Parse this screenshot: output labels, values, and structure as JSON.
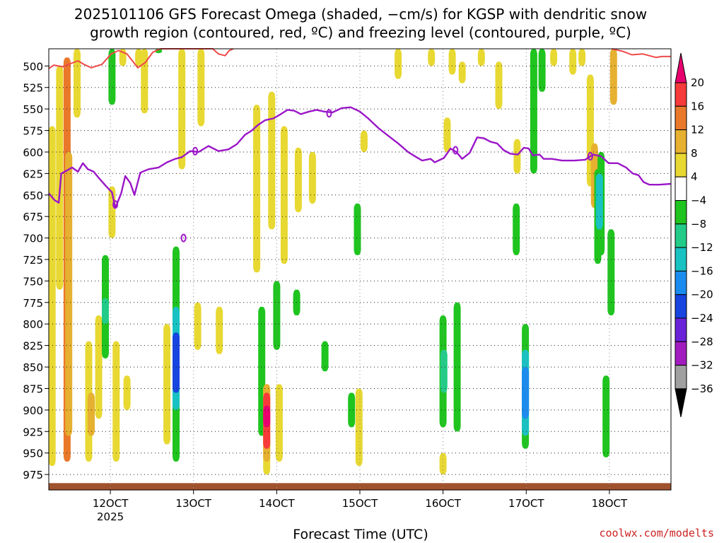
{
  "chart_data": {
    "type": "heatmap",
    "title_line1": "2025101106 GFS Forecast Omega (shaded, −cm/s) for KGSP with dendritic snow",
    "title_line2": "growth region (contoured, red, ºC) and freezing level (contoured, purple, ºC)",
    "xlabel": "Forecast Time (UTC)",
    "credit": "coolwx.com/modelts",
    "x_range_hours": [
      112.6,
      187.4
    ],
    "x_ticks": [
      {
        "hour": 120,
        "label": "12OCT",
        "sublabel": "2025"
      },
      {
        "hour": 130,
        "label": "13OCT",
        "sublabel": ""
      },
      {
        "hour": 140,
        "label": "14OCT",
        "sublabel": ""
      },
      {
        "hour": 150,
        "label": "15OCT",
        "sublabel": ""
      },
      {
        "hour": 160,
        "label": "16OCT",
        "sublabel": ""
      },
      {
        "hour": 170,
        "label": "17OCT",
        "sublabel": ""
      },
      {
        "hour": 180,
        "label": "18OCT",
        "sublabel": ""
      }
    ],
    "y_range_hpa": [
      480,
      993
    ],
    "y_ticks": [
      500,
      525,
      550,
      575,
      600,
      625,
      650,
      675,
      700,
      725,
      750,
      775,
      800,
      825,
      850,
      875,
      900,
      925,
      950,
      975
    ],
    "colorbar": {
      "levels": [
        {
          "label": "20",
          "color": "#e8006e"
        },
        {
          "label": "16",
          "color": "#f73a3a"
        },
        {
          "label": "12",
          "color": "#e9782a"
        },
        {
          "label": "8",
          "color": "#e6b030"
        },
        {
          "label": "4",
          "color": "#e8d832"
        },
        {
          "label": "−4",
          "color": "#ffffff"
        },
        {
          "label": "−8",
          "color": "#1fc41f"
        },
        {
          "label": "−12",
          "color": "#22cc88"
        },
        {
          "label": "−16",
          "color": "#18c2c2"
        },
        {
          "label": "−20",
          "color": "#1a8cf0"
        },
        {
          "label": "−24",
          "color": "#1844e0"
        },
        {
          "label": "−28",
          "color": "#6a22d8"
        },
        {
          "label": "−32",
          "color": "#a11bbf"
        },
        {
          "label": "−36",
          "color": "#a0a0a0"
        }
      ],
      "bottom_color": "#000000"
    },
    "colors": {
      "positive_4": "#e8d832",
      "positive_8": "#e6b030",
      "positive_12": "#e9782a",
      "positive_16": "#f73a3a",
      "positive_20": "#e8006e",
      "negative_4": "#1fc41f",
      "negative_8": "#22cc88",
      "negative_12": "#18c2c2",
      "negative_16": "#1a8cf0",
      "negative_20": "#1844e0",
      "freezing_level": "#9b16c8",
      "dgz": "#f04848",
      "terrain": "#a0522d"
    },
    "shaded_cells": [
      {
        "h": 113.0,
        "p1": 570,
        "p2": 965,
        "level": "positive_4"
      },
      {
        "h": 113.9,
        "p1": 500,
        "p2": 760,
        "level": "positive_4"
      },
      {
        "h": 114.8,
        "p1": 490,
        "p2": 960,
        "level": "positive_12"
      },
      {
        "h": 115.0,
        "p1": 600,
        "p2": 930,
        "level": "positive_8"
      },
      {
        "h": 116.0,
        "p1": 480,
        "p2": 560,
        "level": "positive_4"
      },
      {
        "h": 117.4,
        "p1": 820,
        "p2": 960,
        "level": "positive_4"
      },
      {
        "h": 117.7,
        "p1": 880,
        "p2": 930,
        "level": "positive_8"
      },
      {
        "h": 118.6,
        "p1": 790,
        "p2": 910,
        "level": "positive_4"
      },
      {
        "h": 119.4,
        "p1": 720,
        "p2": 840,
        "level": "negative_4"
      },
      {
        "h": 119.4,
        "p1": 770,
        "p2": 800,
        "level": "negative_8"
      },
      {
        "h": 120.2,
        "p1": 480,
        "p2": 545,
        "level": "negative_4"
      },
      {
        "h": 120.2,
        "p1": 640,
        "p2": 700,
        "level": "positive_4"
      },
      {
        "h": 120.7,
        "p1": 820,
        "p2": 960,
        "level": "positive_4"
      },
      {
        "h": 121.5,
        "p1": 480,
        "p2": 500,
        "level": "positive_4"
      },
      {
        "h": 122.0,
        "p1": 860,
        "p2": 900,
        "level": "positive_4"
      },
      {
        "h": 123.4,
        "p1": 480,
        "p2": 500,
        "level": "positive_4"
      },
      {
        "h": 124.1,
        "p1": 480,
        "p2": 555,
        "level": "positive_4"
      },
      {
        "h": 125.8,
        "p1": 480,
        "p2": 485,
        "level": "negative_4"
      },
      {
        "h": 126.8,
        "p1": 800,
        "p2": 940,
        "level": "positive_4"
      },
      {
        "h": 127.9,
        "p1": 710,
        "p2": 960,
        "level": "negative_4"
      },
      {
        "h": 127.9,
        "p1": 780,
        "p2": 900,
        "level": "negative_12"
      },
      {
        "h": 127.9,
        "p1": 810,
        "p2": 880,
        "level": "negative_20"
      },
      {
        "h": 128.6,
        "p1": 480,
        "p2": 620,
        "level": "positive_4"
      },
      {
        "h": 130.9,
        "p1": 480,
        "p2": 570,
        "level": "positive_4"
      },
      {
        "h": 130.5,
        "p1": 775,
        "p2": 830,
        "level": "positive_4"
      },
      {
        "h": 133.1,
        "p1": 780,
        "p2": 835,
        "level": "positive_4"
      },
      {
        "h": 137.6,
        "p1": 545,
        "p2": 740,
        "level": "positive_4"
      },
      {
        "h": 138.2,
        "p1": 780,
        "p2": 930,
        "level": "negative_4"
      },
      {
        "h": 138.8,
        "p1": 870,
        "p2": 975,
        "level": "positive_4"
      },
      {
        "h": 138.8,
        "p1": 870,
        "p2": 960,
        "level": "positive_8"
      },
      {
        "h": 138.8,
        "p1": 880,
        "p2": 945,
        "level": "positive_16"
      },
      {
        "h": 138.8,
        "p1": 895,
        "p2": 920,
        "level": "positive_20"
      },
      {
        "h": 139.4,
        "p1": 530,
        "p2": 690,
        "level": "positive_4"
      },
      {
        "h": 140.0,
        "p1": 750,
        "p2": 830,
        "level": "negative_4"
      },
      {
        "h": 140.3,
        "p1": 870,
        "p2": 960,
        "level": "positive_4"
      },
      {
        "h": 140.9,
        "p1": 570,
        "p2": 730,
        "level": "positive_4"
      },
      {
        "h": 142.4,
        "p1": 760,
        "p2": 790,
        "level": "negative_4"
      },
      {
        "h": 142.6,
        "p1": 595,
        "p2": 670,
        "level": "positive_4"
      },
      {
        "h": 144.3,
        "p1": 600,
        "p2": 660,
        "level": "positive_4"
      },
      {
        "h": 145.8,
        "p1": 820,
        "p2": 855,
        "level": "negative_4"
      },
      {
        "h": 149.7,
        "p1": 660,
        "p2": 720,
        "level": "negative_4"
      },
      {
        "h": 149.0,
        "p1": 880,
        "p2": 920,
        "level": "negative_4"
      },
      {
        "h": 149.9,
        "p1": 875,
        "p2": 965,
        "level": "positive_4"
      },
      {
        "h": 150.5,
        "p1": 575,
        "p2": 600,
        "level": "positive_4"
      },
      {
        "h": 154.6,
        "p1": 480,
        "p2": 515,
        "level": "positive_4"
      },
      {
        "h": 158.6,
        "p1": 480,
        "p2": 500,
        "level": "positive_4"
      },
      {
        "h": 160.0,
        "p1": 790,
        "p2": 920,
        "level": "negative_4"
      },
      {
        "h": 160.1,
        "p1": 830,
        "p2": 880,
        "level": "negative_8"
      },
      {
        "h": 160.0,
        "p1": 950,
        "p2": 975,
        "level": "positive_4"
      },
      {
        "h": 160.5,
        "p1": 560,
        "p2": 600,
        "level": "positive_4"
      },
      {
        "h": 161.7,
        "p1": 775,
        "p2": 925,
        "level": "negative_4"
      },
      {
        "h": 161.1,
        "p1": 480,
        "p2": 510,
        "level": "positive_4"
      },
      {
        "h": 162.3,
        "p1": 495,
        "p2": 520,
        "level": "positive_4"
      },
      {
        "h": 164.6,
        "p1": 480,
        "p2": 500,
        "level": "positive_4"
      },
      {
        "h": 166.7,
        "p1": 495,
        "p2": 550,
        "level": "positive_4"
      },
      {
        "h": 168.9,
        "p1": 585,
        "p2": 625,
        "level": "positive_4"
      },
      {
        "h": 168.8,
        "p1": 660,
        "p2": 720,
        "level": "negative_4"
      },
      {
        "h": 169.9,
        "p1": 800,
        "p2": 945,
        "level": "negative_4"
      },
      {
        "h": 169.9,
        "p1": 830,
        "p2": 930,
        "level": "negative_12"
      },
      {
        "h": 169.9,
        "p1": 850,
        "p2": 910,
        "level": "negative_16"
      },
      {
        "h": 170.9,
        "p1": 480,
        "p2": 625,
        "level": "negative_4"
      },
      {
        "h": 171.9,
        "p1": 480,
        "p2": 530,
        "level": "negative_4"
      },
      {
        "h": 173.3,
        "p1": 480,
        "p2": 500,
        "level": "positive_4"
      },
      {
        "h": 175.6,
        "p1": 480,
        "p2": 510,
        "level": "positive_4"
      },
      {
        "h": 176.7,
        "p1": 480,
        "p2": 500,
        "level": "positive_4"
      },
      {
        "h": 177.7,
        "p1": 510,
        "p2": 640,
        "level": "positive_4"
      },
      {
        "h": 178.2,
        "p1": 590,
        "p2": 665,
        "level": "positive_8"
      },
      {
        "h": 178.6,
        "p1": 620,
        "p2": 730,
        "level": "negative_4"
      },
      {
        "h": 179.0,
        "p1": 600,
        "p2": 720,
        "level": "negative_4"
      },
      {
        "h": 178.8,
        "p1": 625,
        "p2": 690,
        "level": "negative_12"
      },
      {
        "h": 179.6,
        "p1": 860,
        "p2": 955,
        "level": "negative_4"
      },
      {
        "h": 180.5,
        "p1": 480,
        "p2": 545,
        "level": "positive_8"
      },
      {
        "h": 180.2,
        "p1": 690,
        "p2": 790,
        "level": "negative_4"
      }
    ],
    "dgz_contour": [
      {
        "h": 112.6,
        "p": 503
      },
      {
        "h": 113.2,
        "p": 499
      },
      {
        "h": 114.3,
        "p": 501
      },
      {
        "h": 115.0,
        "p": 498
      },
      {
        "h": 116.1,
        "p": 494
      },
      {
        "h": 116.8,
        "p": 498
      },
      {
        "h": 117.7,
        "p": 502
      },
      {
        "h": 119.0,
        "p": 498
      },
      {
        "h": 120.1,
        "p": 486
      },
      {
        "h": 121.0,
        "p": 482
      },
      {
        "h": 122.0,
        "p": 486
      },
      {
        "h": 123.3,
        "p": 502
      },
      {
        "h": 124.2,
        "p": 496
      },
      {
        "h": 125.1,
        "p": 484
      },
      {
        "h": 126.0,
        "p": 480
      },
      {
        "h": 132.3,
        "p": 480
      },
      {
        "h": 133.0,
        "p": 486
      },
      {
        "h": 133.8,
        "p": 488
      },
      {
        "h": 134.3,
        "p": 482
      },
      {
        "h": 134.8,
        "p": 480
      }
    ],
    "dgz_contour_right": [
      {
        "h": 180.3,
        "p": 480
      },
      {
        "h": 181.6,
        "p": 483
      },
      {
        "h": 182.7,
        "p": 487
      },
      {
        "h": 184.0,
        "p": 486
      },
      {
        "h": 185.6,
        "p": 490
      },
      {
        "h": 186.3,
        "p": 489
      },
      {
        "h": 187.4,
        "p": 489
      }
    ],
    "freezing_level_contour": [
      {
        "h": 112.6,
        "p": 648
      },
      {
        "h": 113.3,
        "p": 656
      },
      {
        "h": 113.8,
        "p": 659
      },
      {
        "h": 114.1,
        "p": 625
      },
      {
        "h": 114.7,
        "p": 622
      },
      {
        "h": 115.4,
        "p": 618
      },
      {
        "h": 116.1,
        "p": 623
      },
      {
        "h": 116.7,
        "p": 613
      },
      {
        "h": 117.3,
        "p": 620
      },
      {
        "h": 118.0,
        "p": 623
      },
      {
        "h": 118.6,
        "p": 630
      },
      {
        "h": 119.5,
        "p": 640
      },
      {
        "h": 120.2,
        "p": 647
      },
      {
        "h": 120.6,
        "p": 665
      },
      {
        "h": 121.3,
        "p": 648
      },
      {
        "h": 121.8,
        "p": 628
      },
      {
        "h": 122.4,
        "p": 636
      },
      {
        "h": 122.9,
        "p": 650
      },
      {
        "h": 123.6,
        "p": 624
      },
      {
        "h": 124.6,
        "p": 620
      },
      {
        "h": 125.8,
        "p": 618
      },
      {
        "h": 126.8,
        "p": 612
      },
      {
        "h": 127.8,
        "p": 608
      },
      {
        "h": 128.6,
        "p": 606
      },
      {
        "h": 129.6,
        "p": 599
      },
      {
        "h": 130.6,
        "p": 600
      },
      {
        "h": 131.8,
        "p": 593
      },
      {
        "h": 133.0,
        "p": 599
      },
      {
        "h": 134.2,
        "p": 597
      },
      {
        "h": 135.2,
        "p": 591
      },
      {
        "h": 136.2,
        "p": 580
      },
      {
        "h": 137.0,
        "p": 575
      },
      {
        "h": 137.7,
        "p": 569
      },
      {
        "h": 138.6,
        "p": 563
      },
      {
        "h": 139.6,
        "p": 561
      },
      {
        "h": 140.5,
        "p": 556
      },
      {
        "h": 141.3,
        "p": 551
      },
      {
        "h": 142.1,
        "p": 552
      },
      {
        "h": 142.9,
        "p": 556
      },
      {
        "h": 143.9,
        "p": 553
      },
      {
        "h": 144.8,
        "p": 551
      },
      {
        "h": 145.7,
        "p": 553
      },
      {
        "h": 146.7,
        "p": 554
      },
      {
        "h": 147.8,
        "p": 549
      },
      {
        "h": 148.9,
        "p": 548
      },
      {
        "h": 150.0,
        "p": 553
      },
      {
        "h": 151.0,
        "p": 561
      },
      {
        "h": 152.2,
        "p": 572
      },
      {
        "h": 153.4,
        "p": 581
      },
      {
        "h": 154.6,
        "p": 590
      },
      {
        "h": 155.8,
        "p": 600
      },
      {
        "h": 156.8,
        "p": 606
      },
      {
        "h": 157.5,
        "p": 610
      },
      {
        "h": 158.5,
        "p": 608
      },
      {
        "h": 159.0,
        "p": 612
      },
      {
        "h": 160.1,
        "p": 607
      },
      {
        "h": 160.9,
        "p": 596
      },
      {
        "h": 161.6,
        "p": 600
      },
      {
        "h": 162.3,
        "p": 608
      },
      {
        "h": 163.2,
        "p": 601
      },
      {
        "h": 164.1,
        "p": 583
      },
      {
        "h": 164.9,
        "p": 584
      },
      {
        "h": 165.7,
        "p": 588
      },
      {
        "h": 166.5,
        "p": 590
      },
      {
        "h": 167.3,
        "p": 598
      },
      {
        "h": 168.1,
        "p": 602
      },
      {
        "h": 169.0,
        "p": 603
      },
      {
        "h": 169.7,
        "p": 595
      },
      {
        "h": 170.3,
        "p": 596
      },
      {
        "h": 170.8,
        "p": 604
      },
      {
        "h": 171.6,
        "p": 603
      },
      {
        "h": 172.1,
        "p": 608
      },
      {
        "h": 173.1,
        "p": 608
      },
      {
        "h": 174.3,
        "p": 610
      },
      {
        "h": 175.8,
        "p": 610
      },
      {
        "h": 177.1,
        "p": 609
      },
      {
        "h": 178.0,
        "p": 603
      },
      {
        "h": 179.0,
        "p": 605
      },
      {
        "h": 179.9,
        "p": 613
      },
      {
        "h": 181.0,
        "p": 613
      },
      {
        "h": 182.0,
        "p": 618
      },
      {
        "h": 182.8,
        "p": 625
      },
      {
        "h": 183.5,
        "p": 627
      },
      {
        "h": 184.1,
        "p": 635
      },
      {
        "h": 184.8,
        "p": 638
      },
      {
        "h": 186.0,
        "p": 638
      },
      {
        "h": 187.4,
        "p": 637
      }
    ],
    "freezing_level_loops": [
      {
        "h": 120.6,
        "p": 661
      },
      {
        "h": 130.2,
        "p": 599
      },
      {
        "h": 128.8,
        "p": 700
      },
      {
        "h": 146.3,
        "p": 555
      },
      {
        "h": 161.5,
        "p": 598
      },
      {
        "h": 177.7,
        "p": 605
      }
    ],
    "terrain_top_hpa": 985
  }
}
